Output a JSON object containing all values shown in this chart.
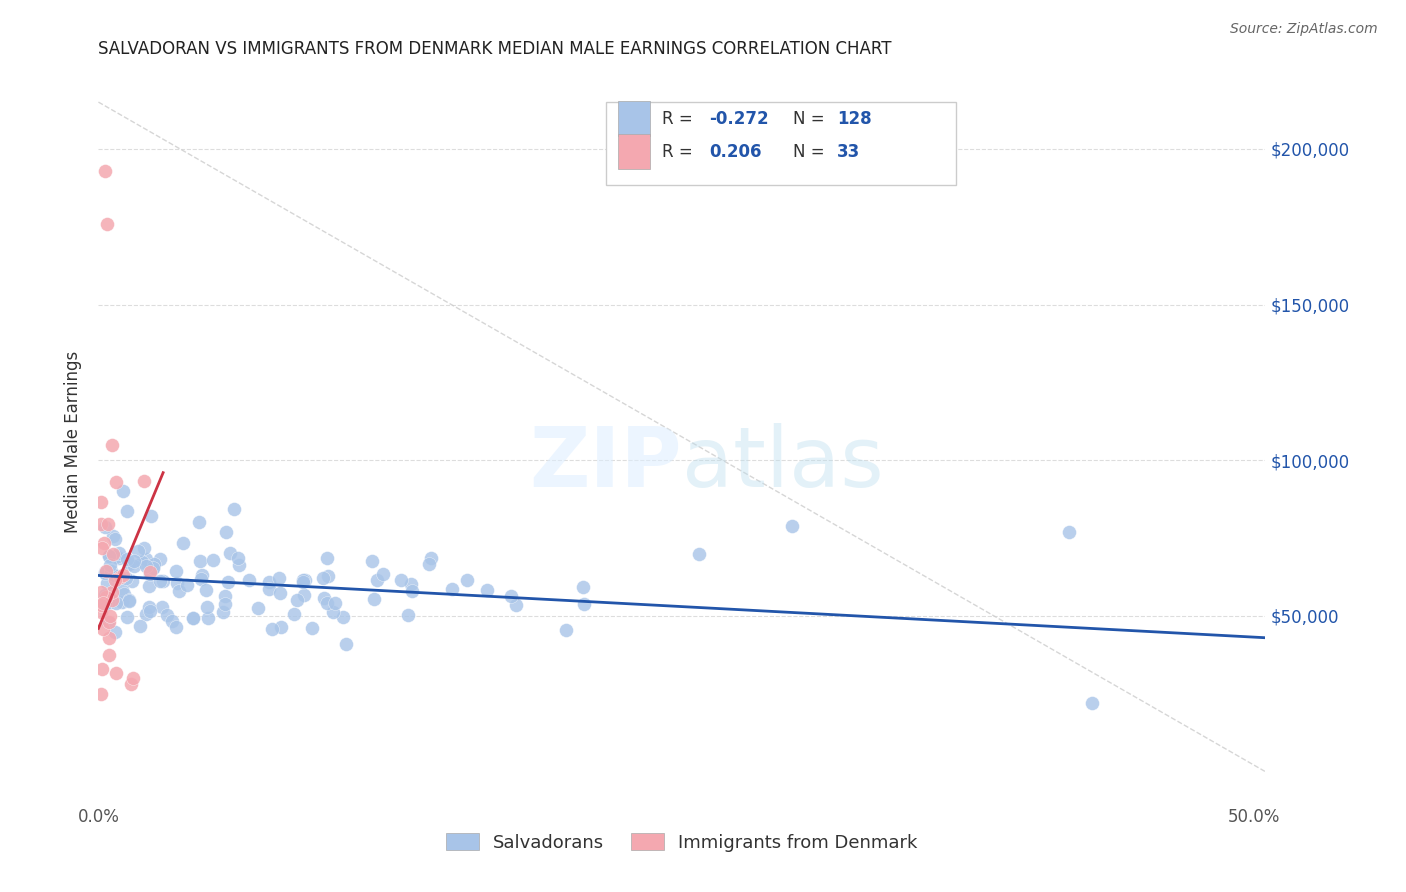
{
  "title": "SALVADORAN VS IMMIGRANTS FROM DENMARK MEDIAN MALE EARNINGS CORRELATION CHART",
  "source": "Source: ZipAtlas.com",
  "ylabel": "Median Male Earnings",
  "blue_R": -0.272,
  "blue_N": 128,
  "pink_R": 0.206,
  "pink_N": 33,
  "blue_color": "#a8c4e8",
  "pink_color": "#f4a8b0",
  "blue_line_color": "#2255aa",
  "pink_line_color": "#cc3344",
  "legend_label_blue": "Salvadorans",
  "legend_label_pink": "Immigrants from Denmark",
  "xlim": [
    0.0,
    0.505
  ],
  "ylim": [
    -10000,
    222000
  ],
  "blue_line_x": [
    0.0,
    0.505
  ],
  "blue_line_y": [
    63000,
    43000
  ],
  "pink_line_x": [
    0.0,
    0.028
  ],
  "pink_line_y": [
    46000,
    96000
  ],
  "diag_line_x": [
    0.0,
    0.505
  ],
  "diag_line_y": [
    215000,
    0
  ],
  "ytick_vals": [
    50000,
    100000,
    150000,
    200000
  ],
  "ytick_labels": [
    "$50,000",
    "$100,000",
    "$150,000",
    "$200,000"
  ],
  "xtick_vals": [
    0.0,
    0.1,
    0.2,
    0.3,
    0.4,
    0.5
  ],
  "xtick_labels": [
    "0.0%",
    "",
    "",
    "",
    "",
    "50.0%"
  ]
}
